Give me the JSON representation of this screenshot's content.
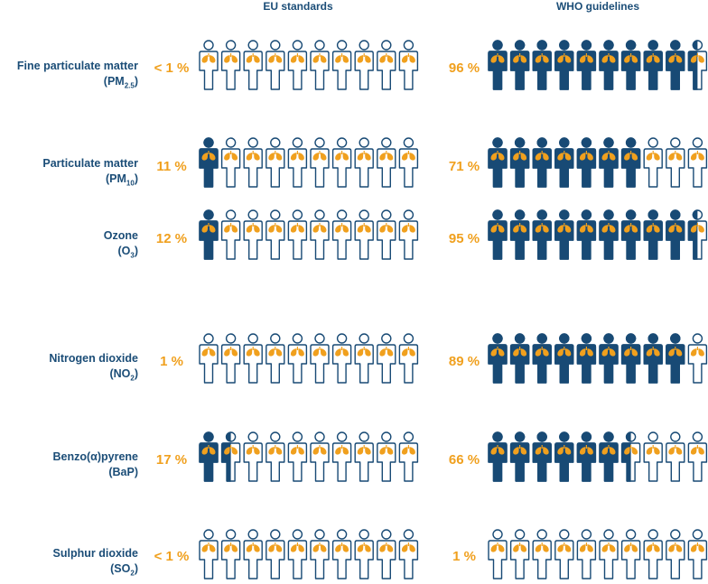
{
  "header": {
    "eu": "EU standards",
    "who": "WHO guidelines"
  },
  "colors": {
    "navy": "#184a75",
    "orange": "#f0a01e",
    "white": "#ffffff"
  },
  "chart_data": {
    "type": "pictogram",
    "unit": "%",
    "icons_per_row": 10,
    "series": [
      {
        "name": "EU standards",
        "values": [
          0.5,
          11,
          12,
          1,
          17,
          0.5
        ]
      },
      {
        "name": "WHO guidelines",
        "values": [
          96,
          71,
          95,
          89,
          66,
          1
        ]
      }
    ],
    "rows": [
      {
        "label": "Fine particulate matter",
        "sub_prefix": "(PM",
        "sub": "2.5",
        "sub_suffix": ")",
        "eu_text": "< 1 %",
        "who_text": "96 %"
      },
      {
        "label": "Particulate matter",
        "sub_prefix": "(PM",
        "sub": "10",
        "sub_suffix": ")",
        "eu_text": "11 %",
        "who_text": "71 %"
      },
      {
        "label": "Ozone",
        "sub_prefix": "(O",
        "sub": "3",
        "sub_suffix": ")",
        "eu_text": "12 %",
        "who_text": "95 %"
      },
      {
        "label": "Nitrogen dioxide",
        "sub_prefix": "(NO",
        "sub": "2",
        "sub_suffix": ")",
        "eu_text": "1 %",
        "who_text": "89 %"
      },
      {
        "label": "Benzo(α)pyrene",
        "sub_prefix": "(BaP)",
        "sub": "",
        "sub_suffix": "",
        "eu_text": "17 %",
        "who_text": "66 %"
      },
      {
        "label": "Sulphur dioxide",
        "sub_prefix": "(SO",
        "sub": "2",
        "sub_suffix": ")",
        "eu_text": "< 1 %",
        "who_text": "1 %"
      }
    ]
  }
}
